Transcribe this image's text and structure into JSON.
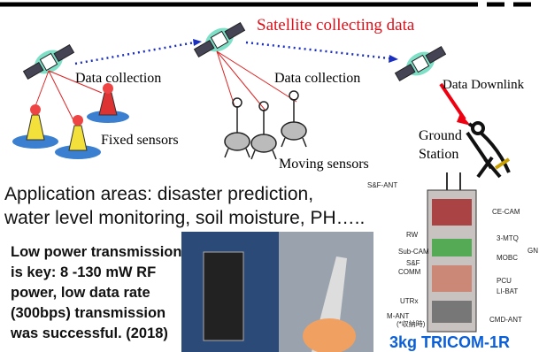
{
  "header": {
    "title": "Satellite collecting data"
  },
  "scene": {
    "left_link": "Data collection",
    "middle_link": "Data collection",
    "downlink": "Data Downlink",
    "fixed_sensors": "Fixed sensors",
    "moving_sensors": "Moving sensors",
    "ground_station": [
      "Ground",
      "Station"
    ]
  },
  "body": {
    "applications": [
      "Application areas: disaster prediction,",
      "water level monitoring, soil moisture, PH….."
    ],
    "key_point": [
      "Low power transmission",
      "is key: 8 -130 mW RF",
      "power, low data rate",
      "(300bps) transmission",
      "was successful. (2018)"
    ]
  },
  "satellite_diagram": {
    "caption": "3kg TRICOM-1R",
    "labels": [
      "S&F-ANT",
      "CE-CAM",
      "RW",
      "3-MTQ",
      "Sub-CAM",
      "GN",
      "MOBC",
      "S&F",
      "COMM",
      "PCU",
      "LI-BAT",
      "UTRx",
      "M-ANT",
      "(*収納時)",
      "CMD-ANT"
    ]
  }
}
